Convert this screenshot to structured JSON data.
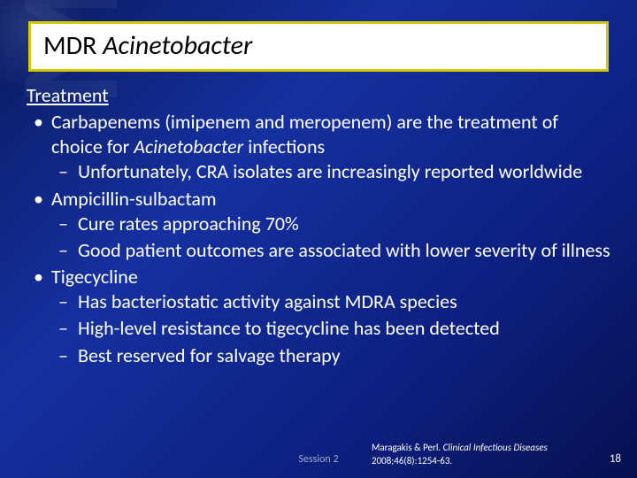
{
  "title": {
    "plain": "MDR ",
    "italic": "Acinetobacter"
  },
  "heading": "Treatment",
  "bullets": [
    {
      "text_parts": [
        {
          "t": "Carbapenems (imipenem and meropenem) are the treatment of choice for ",
          "italic": false
        },
        {
          "t": "Acinetobacter",
          "italic": true
        },
        {
          "t": " infections",
          "italic": false
        }
      ],
      "subs": [
        "Unfortunately, CRA isolates are increasingly reported worldwide"
      ]
    },
    {
      "text_parts": [
        {
          "t": "Ampicillin-sulbactam",
          "italic": false
        }
      ],
      "subs": [
        "Cure rates approaching 70%",
        "Good patient outcomes are associated with lower severity of illness"
      ]
    },
    {
      "text_parts": [
        {
          "t": "Tigecycline",
          "italic": false
        }
      ],
      "subs": [
        "Has bacteriostatic activity against MDRA species",
        "High-level resistance to tigecycline has been detected",
        "Best reserved for salvage therapy"
      ]
    }
  ],
  "citation": {
    "authors": "Maragakis & Perl. ",
    "journal": "Clinical Infectious Diseases",
    "rest": " 2008;46(8):1254-63."
  },
  "session": "Session 2",
  "slide_number": "18",
  "colors": {
    "title_border": "#d8c800",
    "title_bg": "#ffffff",
    "title_text": "#000000",
    "body_text": "#ffffff"
  }
}
